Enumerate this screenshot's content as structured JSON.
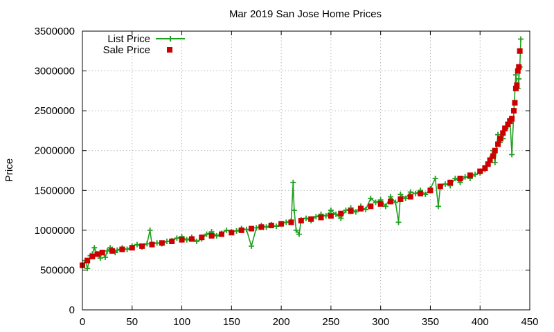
{
  "chart_data": {
    "type": "line",
    "title": "Mar 2019 San Jose Home Prices",
    "xlabel": "",
    "ylabel": "Price",
    "xlim": [
      0,
      450
    ],
    "ylim": [
      0,
      3500000
    ],
    "xticks": [
      0,
      50,
      100,
      150,
      200,
      250,
      300,
      350,
      400,
      450
    ],
    "yticks": [
      0,
      500000,
      1000000,
      1500000,
      2000000,
      2500000,
      3000000,
      3500000
    ],
    "grid": true,
    "legend_position": "top-left",
    "series": [
      {
        "name": "List Price",
        "style": "line+plus",
        "color": "#1ea01e",
        "x": [
          0,
          3,
          5,
          8,
          10,
          12,
          15,
          18,
          20,
          23,
          25,
          28,
          30,
          33,
          35,
          40,
          45,
          50,
          55,
          60,
          65,
          68,
          70,
          75,
          80,
          85,
          90,
          95,
          100,
          105,
          110,
          115,
          120,
          125,
          130,
          135,
          140,
          145,
          150,
          155,
          160,
          165,
          170,
          175,
          180,
          185,
          190,
          195,
          200,
          205,
          210,
          212,
          213,
          215,
          218,
          220,
          225,
          230,
          235,
          240,
          245,
          250,
          255,
          260,
          265,
          270,
          275,
          280,
          285,
          290,
          295,
          300,
          305,
          310,
          315,
          318,
          320,
          325,
          330,
          335,
          340,
          345,
          350,
          355,
          358,
          360,
          365,
          370,
          375,
          380,
          385,
          390,
          395,
          400,
          405,
          410,
          413,
          415,
          418,
          420,
          423,
          425,
          428,
          430,
          432,
          434,
          436,
          438,
          439,
          440,
          441
        ],
        "y": [
          560000,
          620000,
          520000,
          680000,
          700000,
          780000,
          700000,
          650000,
          720000,
          660000,
          740000,
          780000,
          760000,
          720000,
          750000,
          780000,
          760000,
          800000,
          820000,
          790000,
          830000,
          1000000,
          820000,
          840000,
          830000,
          860000,
          870000,
          900000,
          920000,
          880000,
          910000,
          860000,
          890000,
          950000,
          980000,
          930000,
          960000,
          1000000,
          980000,
          990000,
          1020000,
          1010000,
          800000,
          1030000,
          1060000,
          1040000,
          1070000,
          1050000,
          1080000,
          1100000,
          1120000,
          1600000,
          1250000,
          1000000,
          950000,
          1130000,
          1150000,
          1120000,
          1170000,
          1200000,
          1180000,
          1250000,
          1200000,
          1150000,
          1250000,
          1280000,
          1230000,
          1300000,
          1260000,
          1400000,
          1350000,
          1380000,
          1300000,
          1420000,
          1350000,
          1100000,
          1450000,
          1400000,
          1480000,
          1460000,
          1500000,
          1450000,
          1520000,
          1650000,
          1300000,
          1550000,
          1580000,
          1560000,
          1650000,
          1600000,
          1670000,
          1650000,
          1700000,
          1720000,
          1760000,
          1900000,
          2000000,
          1850000,
          2200000,
          2100000,
          2150000,
          2250000,
          2300000,
          2400000,
          1950000,
          2500000,
          2950000,
          2780000,
          2900000,
          3050000,
          3400000
        ]
      },
      {
        "name": "Sale Price",
        "style": "square",
        "color": "#cc0000",
        "x": [
          0,
          5,
          10,
          15,
          20,
          30,
          40,
          50,
          60,
          70,
          80,
          90,
          100,
          110,
          120,
          130,
          140,
          150,
          160,
          170,
          180,
          190,
          200,
          210,
          220,
          230,
          240,
          250,
          260,
          270,
          280,
          290,
          300,
          310,
          320,
          330,
          340,
          350,
          360,
          370,
          380,
          390,
          400,
          405,
          408,
          410,
          413,
          415,
          418,
          420,
          423,
          425,
          428,
          430,
          432,
          434,
          435,
          436,
          437,
          438,
          439,
          440
        ],
        "y": [
          560000,
          620000,
          670000,
          700000,
          720000,
          740000,
          760000,
          780000,
          800000,
          820000,
          840000,
          860000,
          880000,
          890000,
          910000,
          930000,
          950000,
          970000,
          1000000,
          1020000,
          1040000,
          1060000,
          1080000,
          1100000,
          1120000,
          1140000,
          1160000,
          1180000,
          1210000,
          1240000,
          1270000,
          1300000,
          1330000,
          1360000,
          1390000,
          1420000,
          1460000,
          1500000,
          1550000,
          1600000,
          1650000,
          1690000,
          1740000,
          1780000,
          1830000,
          1880000,
          1930000,
          2000000,
          2080000,
          2150000,
          2220000,
          2280000,
          2330000,
          2370000,
          2400000,
          2500000,
          2600000,
          2780000,
          2820000,
          3000000,
          3050000,
          3250000
        ]
      }
    ]
  }
}
